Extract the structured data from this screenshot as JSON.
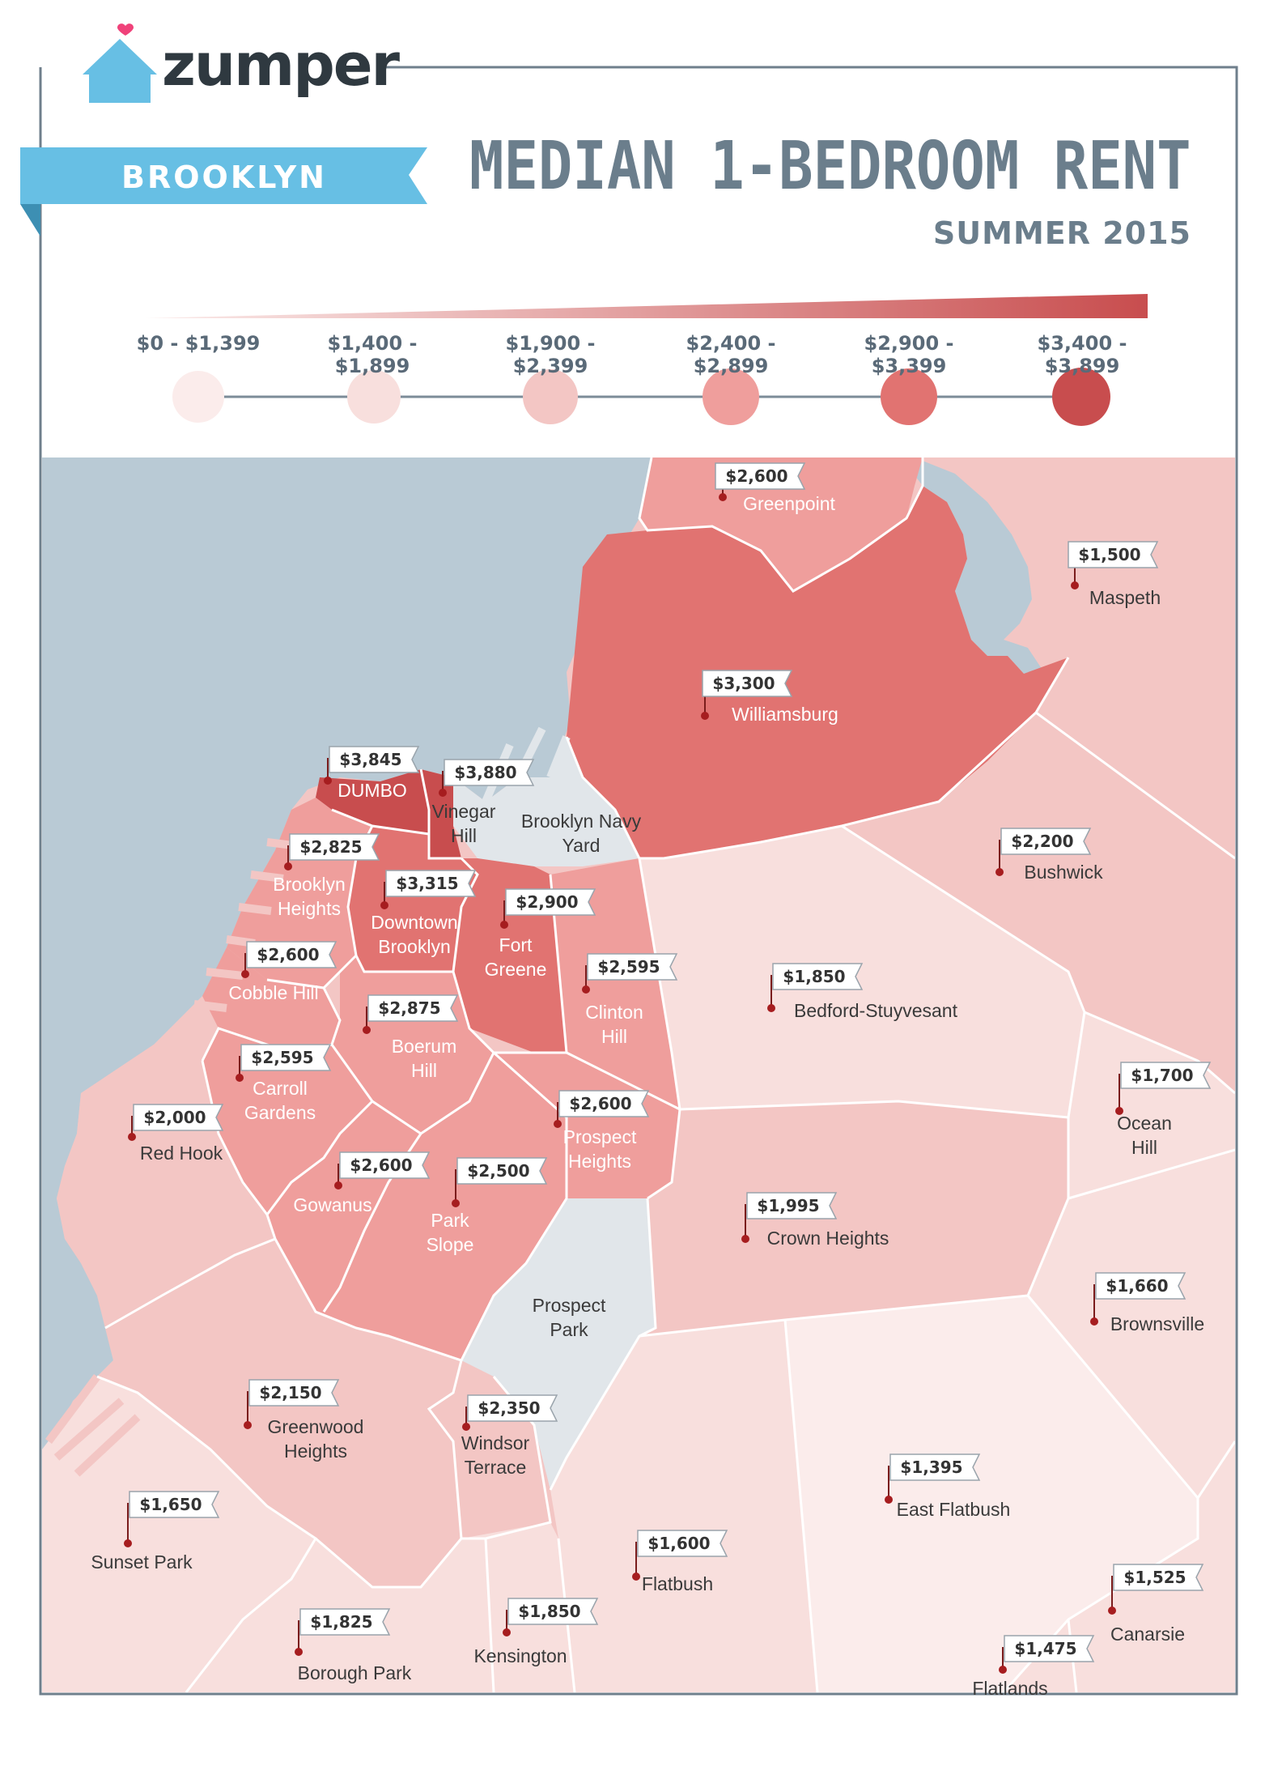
{
  "header": {
    "brand": "zumper",
    "banner": "BROOKLYN",
    "title": "MEDIAN 1-BEDROOM RENT",
    "subtitle": "SUMMER 2015"
  },
  "legend": {
    "ranges": [
      {
        "label": "$0 - $1,399",
        "color": "#fbeceb"
      },
      {
        "label": "$1,400 - $1,899",
        "color": "#f8dfdd"
      },
      {
        "label": "$1,900 - $2,399",
        "color": "#f3c6c4"
      },
      {
        "label": "$2,400 - $2,899",
        "color": "#ef9e9c"
      },
      {
        "label": "$2,900 - $3,399",
        "color": "#e17371"
      },
      {
        "label": "$3,400 - $3,899",
        "color": "#c84d4e"
      }
    ]
  },
  "colors": {
    "water": "#b9cad5",
    "park": "#e1e6ea",
    "frame": "#6f7f8c",
    "banner": "#67bfe4",
    "title": "#6b7e8c",
    "pin": "#a61d1f"
  },
  "neighborhoods": [
    {
      "name": "Greenpoint",
      "price": "$2,600"
    },
    {
      "name": "Maspeth",
      "price": "$1,500"
    },
    {
      "name": "Williamsburg",
      "price": "$3,300"
    },
    {
      "name": "DUMBO",
      "price": "$3,845"
    },
    {
      "name": "Vinegar Hill",
      "price": "$3,880"
    },
    {
      "name": "Brooklyn Navy Yard",
      "price": ""
    },
    {
      "name": "Brooklyn Heights",
      "price": "$2,825"
    },
    {
      "name": "Downtown Brooklyn",
      "price": "$3,315"
    },
    {
      "name": "Fort Greene",
      "price": "$2,900"
    },
    {
      "name": "Clinton Hill",
      "price": "$2,595"
    },
    {
      "name": "Bedford-Stuyvesant",
      "price": "$1,850"
    },
    {
      "name": "Bushwick",
      "price": "$2,200"
    },
    {
      "name": "Cobble Hill",
      "price": "$2,600"
    },
    {
      "name": "Boerum Hill",
      "price": "$2,875"
    },
    {
      "name": "Carroll Gardens",
      "price": "$2,595"
    },
    {
      "name": "Red Hook",
      "price": "$2,000"
    },
    {
      "name": "Gowanus",
      "price": "$2,600"
    },
    {
      "name": "Park Slope",
      "price": "$2,500"
    },
    {
      "name": "Prospect Heights",
      "price": "$2,600"
    },
    {
      "name": "Ocean Hill",
      "price": "$1,700"
    },
    {
      "name": "Crown Heights",
      "price": "$1,995"
    },
    {
      "name": "Prospect Park",
      "price": ""
    },
    {
      "name": "Brownsville",
      "price": "$1,660"
    },
    {
      "name": "Greenwood Heights",
      "price": "$2,150"
    },
    {
      "name": "Windsor Terrace",
      "price": "$2,350"
    },
    {
      "name": "East Flatbush",
      "price": "$1,395"
    },
    {
      "name": "Sunset Park",
      "price": "$1,650"
    },
    {
      "name": "Flatbush",
      "price": "$1,600"
    },
    {
      "name": "Canarsie",
      "price": "$1,525"
    },
    {
      "name": "Borough Park",
      "price": "$1,825"
    },
    {
      "name": "Kensington",
      "price": "$1,850"
    },
    {
      "name": "Flatlands",
      "price": "$1,475"
    }
  ]
}
